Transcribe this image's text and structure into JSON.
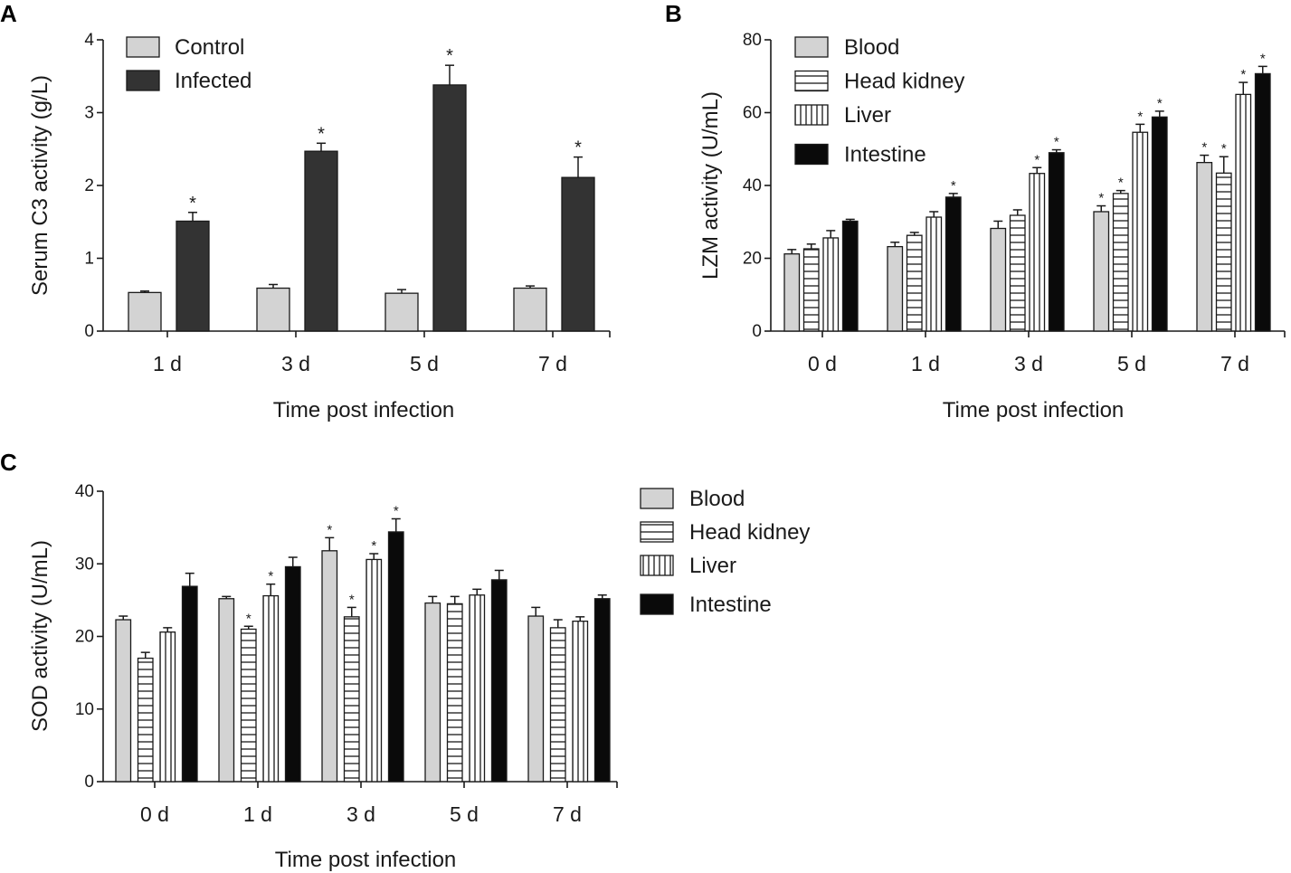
{
  "figure": {
    "panel_letters": [
      "A",
      "B",
      "C"
    ],
    "colors": {
      "blood": "#d3d3d3",
      "infected": "#333333",
      "intestine": "#0a0a0a",
      "stroke": "#1a1a1a",
      "hatch_bg": "#ffffff"
    }
  },
  "chart_data": [
    {
      "type": "bar",
      "panel": "A",
      "ylabel": "Serum C3 activity (g/L)",
      "xlabel": "Time post infection",
      "ylim": [
        0,
        4
      ],
      "yticks": [
        "0",
        "1",
        "2",
        "3",
        "4"
      ],
      "categories": [
        "1 d",
        "3 d",
        "5 d",
        "7 d"
      ],
      "series": [
        {
          "name": "Control",
          "style": "gray",
          "values": [
            0.53,
            0.59,
            0.52,
            0.59
          ],
          "errors": [
            0.02,
            0.05,
            0.05,
            0.03
          ],
          "sig": [
            false,
            false,
            false,
            false
          ]
        },
        {
          "name": "Infected",
          "style": "dark",
          "values": [
            1.51,
            2.47,
            3.38,
            2.11
          ],
          "errors": [
            0.12,
            0.11,
            0.27,
            0.28
          ],
          "sig": [
            true,
            true,
            true,
            true
          ]
        }
      ],
      "sig_label": "*"
    },
    {
      "type": "bar",
      "panel": "B",
      "ylabel": "LZM activity (U/mL)",
      "xlabel": "Time post infection",
      "ylim": [
        0,
        80
      ],
      "yticks": [
        "0",
        "20",
        "40",
        "60",
        "80"
      ],
      "categories": [
        "0 d",
        "1 d",
        "3 d",
        "5 d",
        "7 d"
      ],
      "series": [
        {
          "name": "Blood",
          "style": "gray",
          "values": [
            21.2,
            23.2,
            28.2,
            32.8,
            46.3
          ],
          "errors": [
            1.2,
            1.2,
            2.0,
            1.6,
            2.0
          ],
          "sig": [
            false,
            false,
            false,
            true,
            true
          ]
        },
        {
          "name": "Head kidney",
          "style": "hlines",
          "values": [
            22.6,
            26.3,
            31.8,
            37.8,
            43.4
          ],
          "errors": [
            1.3,
            0.8,
            1.5,
            0.8,
            4.5
          ],
          "sig": [
            false,
            false,
            false,
            true,
            true
          ]
        },
        {
          "name": "Liver",
          "style": "vlines",
          "values": [
            25.6,
            31.3,
            43.3,
            54.6,
            65.0
          ],
          "errors": [
            2.0,
            1.5,
            1.6,
            2.2,
            3.3
          ],
          "sig": [
            false,
            false,
            true,
            true,
            true
          ]
        },
        {
          "name": "Intestine",
          "style": "black",
          "values": [
            30.2,
            36.8,
            49.0,
            58.8,
            70.7
          ],
          "errors": [
            0.5,
            1.0,
            0.8,
            1.6,
            2.0
          ],
          "sig": [
            false,
            true,
            true,
            true,
            true
          ]
        }
      ],
      "sig_label": "*"
    },
    {
      "type": "bar",
      "panel": "C",
      "ylabel": "SOD activity (U/mL)",
      "xlabel": "Time post infection",
      "ylim": [
        0,
        40
      ],
      "yticks": [
        "0",
        "10",
        "20",
        "30",
        "40"
      ],
      "categories": [
        "0 d",
        "1 d",
        "3 d",
        "5 d",
        "7 d"
      ],
      "series": [
        {
          "name": "Blood",
          "style": "gray",
          "values": [
            22.3,
            25.2,
            31.8,
            24.6,
            22.8
          ],
          "errors": [
            0.5,
            0.3,
            1.8,
            0.9,
            1.2
          ],
          "sig": [
            false,
            false,
            true,
            false,
            false
          ]
        },
        {
          "name": "Head kidney",
          "style": "hlines",
          "values": [
            17.0,
            21.0,
            22.7,
            24.5,
            21.2
          ],
          "errors": [
            0.8,
            0.4,
            1.3,
            1.0,
            1.1
          ],
          "sig": [
            false,
            true,
            true,
            false,
            false
          ]
        },
        {
          "name": "Liver",
          "style": "vlines",
          "values": [
            20.6,
            25.6,
            30.6,
            25.7,
            22.1
          ],
          "errors": [
            0.6,
            1.6,
            0.8,
            0.8,
            0.6
          ],
          "sig": [
            false,
            true,
            true,
            false,
            false
          ]
        },
        {
          "name": "Intestine",
          "style": "black",
          "values": [
            26.9,
            29.6,
            34.4,
            27.8,
            25.2
          ],
          "errors": [
            1.8,
            1.3,
            1.8,
            1.3,
            0.5
          ],
          "sig": [
            false,
            false,
            true,
            false,
            false
          ]
        }
      ],
      "sig_label": "*"
    }
  ]
}
